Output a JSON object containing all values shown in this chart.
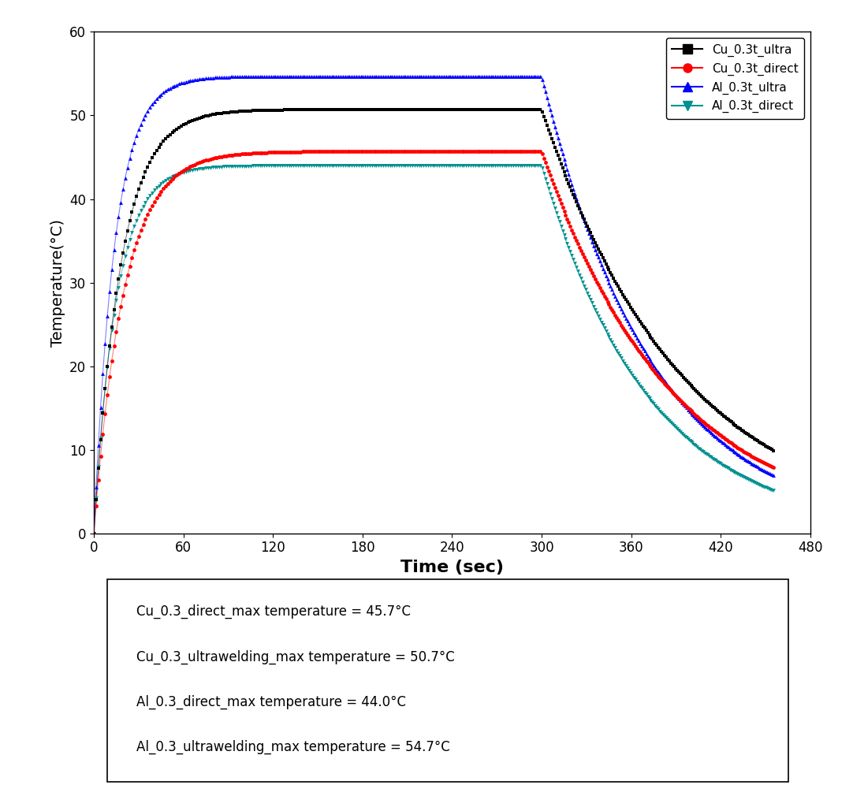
{
  "title": "",
  "xlabel": "Time (sec)",
  "ylabel": "Temperature(°C)",
  "xlim": [
    0,
    480
  ],
  "ylim": [
    0,
    60
  ],
  "xticks": [
    0,
    60,
    120,
    180,
    240,
    300,
    360,
    420,
    480
  ],
  "yticks": [
    0,
    10,
    20,
    30,
    40,
    50,
    60
  ],
  "series": {
    "Cu_ultra": {
      "label": "Cu_0.3t_ultra",
      "color": "#000000",
      "marker": "s",
      "max_temp": 50.7,
      "tau_rise": 18,
      "tau_fall": 95
    },
    "Cu_direct": {
      "label": "Cu_0.3t_direct",
      "color": "#ff0000",
      "marker": "o",
      "max_temp": 45.7,
      "tau_rise": 20,
      "tau_fall": 88
    },
    "Al_ultra": {
      "label": "Al_0.3t_ultra",
      "color": "#0000ff",
      "marker": "^",
      "max_temp": 54.7,
      "tau_rise": 14,
      "tau_fall": 75
    },
    "Al_direct": {
      "label": "Al_0.3t_direct",
      "color": "#009090",
      "marker": "v",
      "max_temp": 44.0,
      "tau_rise": 15,
      "tau_fall": 72
    }
  },
  "t_switch": 300,
  "t_end": 455,
  "annotation_lines": [
    "Cu_0.3_direct_max temperature = 45.7°C",
    "Cu_0.3_ultrawelding_max temperature = 50.7°C",
    "Al_0.3_direct_max temperature = 44.0°C",
    "Al_0.3_ultrawelding_max temperature = 54.7°C"
  ],
  "figsize": [
    10.82,
    10.1
  ],
  "dpi": 100
}
